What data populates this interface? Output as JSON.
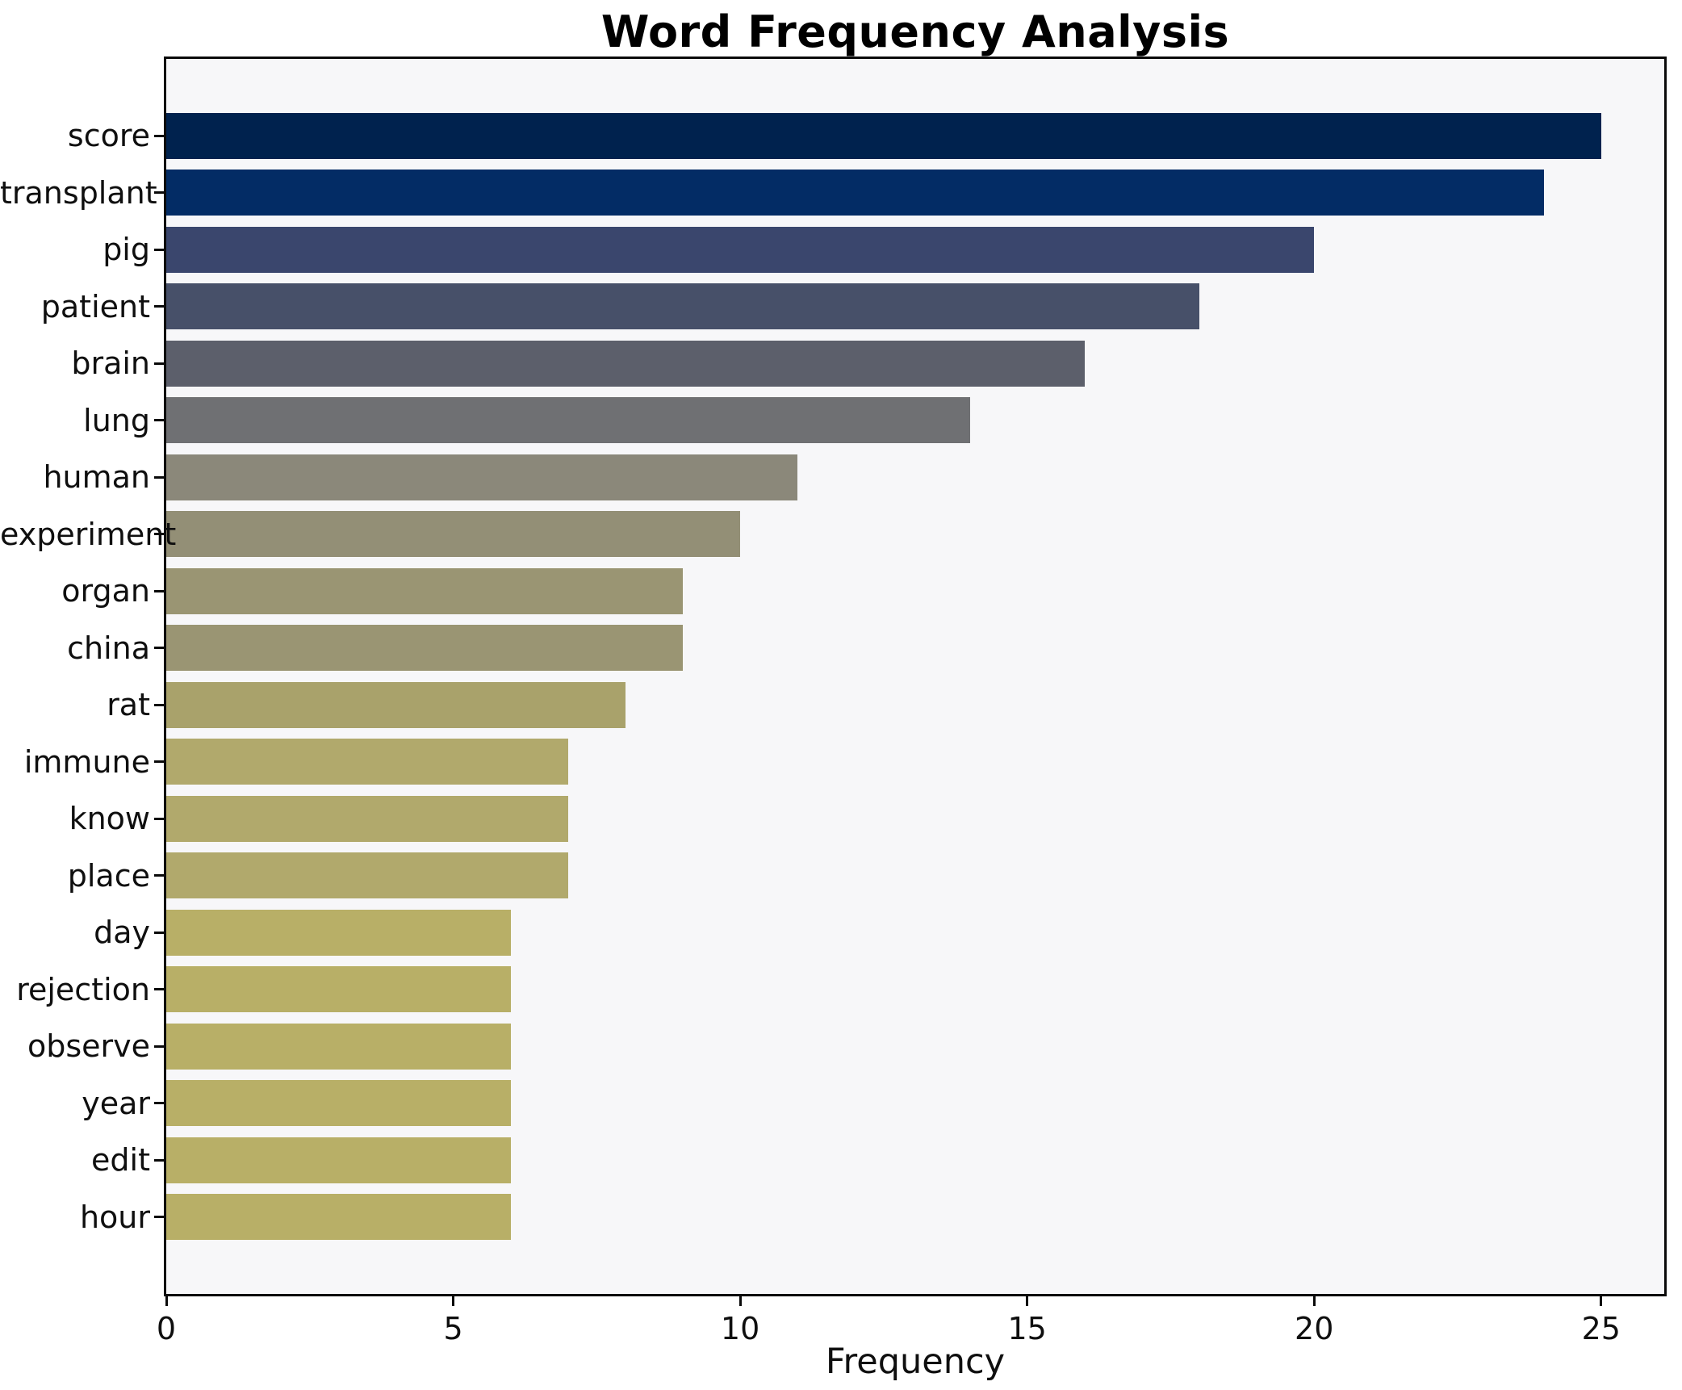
{
  "chart_data": {
    "type": "bar",
    "orientation": "horizontal",
    "title": "Word Frequency Analysis",
    "xlabel": "Frequency",
    "ylabel": "",
    "categories": [
      "score",
      "transplant",
      "pig",
      "patient",
      "brain",
      "lung",
      "human",
      "experiment",
      "organ",
      "china",
      "rat",
      "immune",
      "know",
      "place",
      "day",
      "rejection",
      "observe",
      "year",
      "edit",
      "hour"
    ],
    "values": [
      25,
      24,
      20,
      18,
      16,
      14,
      11,
      10,
      9,
      9,
      8,
      7,
      7,
      7,
      6,
      6,
      6,
      6,
      6,
      6
    ],
    "bar_colors": [
      "#00224e",
      "#032c65",
      "#3a466d",
      "#475069",
      "#5c5f6b",
      "#6f7073",
      "#8b887a",
      "#938f76",
      "#9a9573",
      "#9a9573",
      "#a9a26b",
      "#b1a96c",
      "#b1a96c",
      "#b1a96c",
      "#b8af67",
      "#b8af67",
      "#b8af67",
      "#b8af67",
      "#b8af67",
      "#b8af67"
    ],
    "x_ticks": [
      0,
      5,
      10,
      15,
      20,
      25
    ],
    "xlim": [
      0,
      26.1
    ],
    "grid": false,
    "legend_position": "none",
    "plot_background": "#f7f7f9",
    "figure_background": "#ffffff",
    "spine_color": "#0a0a0a"
  }
}
